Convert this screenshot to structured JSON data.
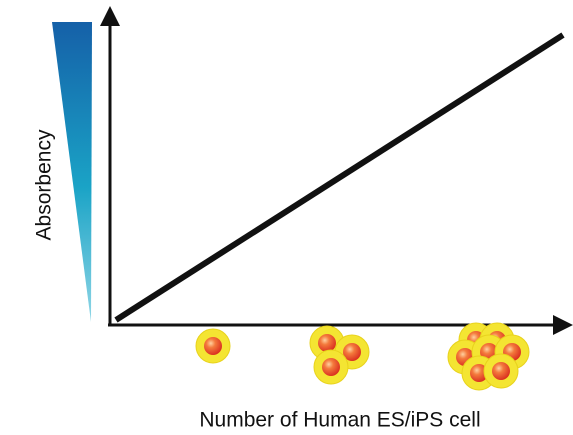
{
  "y_axis_label": "Absorbency",
  "x_axis_label": "Number of Human ES/iPS cell"
}
